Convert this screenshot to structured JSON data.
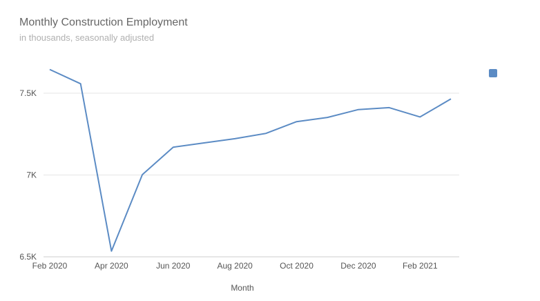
{
  "colors": {
    "series": "#5b8bc4",
    "grid": "#e6e6e6",
    "axis": "#cccccc"
  },
  "chart_data": {
    "type": "line",
    "title": "Monthly Construction Employment",
    "subtitle": "in thousands, seasonally adjusted",
    "xlabel": "Month",
    "ylabel": "",
    "ylim": [
      6500,
      7650
    ],
    "y_ticks": [
      6500,
      7000,
      7500
    ],
    "y_tick_labels": [
      "6.5K",
      "7K",
      "7.5K"
    ],
    "x_ticks": [
      "Feb 2020",
      "Apr 2020",
      "Jun 2020",
      "Aug 2020",
      "Oct 2020",
      "Dec 2020",
      "Feb 2021"
    ],
    "grid": true,
    "legend": {
      "position": "right",
      "entries": [
        ""
      ]
    },
    "x": [
      "Feb 2020",
      "Mar 2020",
      "Apr 2020",
      "May 2020",
      "Jun 2020",
      "Jul 2020",
      "Aug 2020",
      "Sep 2020",
      "Oct 2020",
      "Nov 2020",
      "Dec 2020",
      "Jan 2021",
      "Feb 2021",
      "Mar 2021"
    ],
    "series": [
      {
        "values": [
          7645,
          7558,
          6535,
          7002,
          7170,
          7196,
          7222,
          7254,
          7326,
          7352,
          7400,
          7412,
          7355,
          7465
        ]
      }
    ]
  }
}
